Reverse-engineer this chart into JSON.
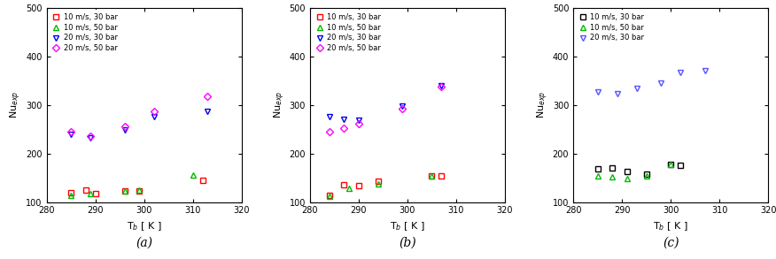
{
  "panels": [
    {
      "label": "(a)",
      "series": [
        {
          "key": "red_square",
          "x": [
            285,
            288,
            290,
            296,
            299,
            312
          ],
          "y": [
            120,
            125,
            118,
            122,
            122,
            145
          ],
          "color": "#ff0000",
          "marker": "s",
          "label": "10 m/s, 30 bar"
        },
        {
          "key": "green_tri_up",
          "x": [
            285,
            289,
            296,
            299,
            310
          ],
          "y": [
            114,
            117,
            123,
            125,
            155
          ],
          "color": "#00bb00",
          "marker": "^",
          "label": "10 m/s, 50 bar"
        },
        {
          "key": "blue_tri_down",
          "x": [
            285,
            289,
            296,
            302,
            313
          ],
          "y": [
            239,
            232,
            249,
            275,
            287
          ],
          "color": "#0000ee",
          "marker": "v",
          "label": "20 m/s, 30 bar"
        },
        {
          "key": "magenta_diamond",
          "x": [
            285,
            289,
            296,
            302,
            313
          ],
          "y": [
            244,
            236,
            255,
            286,
            318
          ],
          "color": "#ff00ff",
          "marker": "D",
          "label": "20 m/s, 50 bar"
        }
      ]
    },
    {
      "label": "(b)",
      "series": [
        {
          "key": "red_square",
          "x": [
            284,
            287,
            290,
            294,
            305,
            307
          ],
          "y": [
            113,
            135,
            133,
            143,
            153,
            153
          ],
          "color": "#ff0000",
          "marker": "s",
          "label": "10 m/s, 30 bar"
        },
        {
          "key": "green_tri_up",
          "x": [
            284,
            288,
            294,
            305
          ],
          "y": [
            112,
            128,
            138,
            153
          ],
          "color": "#00bb00",
          "marker": "^",
          "label": "10 m/s, 50 bar"
        },
        {
          "key": "blue_tri_down",
          "x": [
            284,
            287,
            290,
            299,
            307
          ],
          "y": [
            275,
            271,
            268,
            298,
            340
          ],
          "color": "#0000ee",
          "marker": "v",
          "label": "20 m/s, 30 bar"
        },
        {
          "key": "magenta_diamond",
          "x": [
            284,
            287,
            290,
            299,
            307
          ],
          "y": [
            245,
            252,
            262,
            293,
            337
          ],
          "color": "#ff00ff",
          "marker": "D",
          "label": "20 m/s, 50 bar"
        }
      ]
    },
    {
      "label": "(c)",
      "series": [
        {
          "key": "red_square",
          "x": [
            285,
            288,
            291,
            295,
            300,
            302
          ],
          "y": [
            168,
            170,
            163,
            158,
            178,
            176
          ],
          "color": "#000000",
          "marker": "s",
          "label": "10 m/s, 30 bar"
        },
        {
          "key": "green_tri_up",
          "x": [
            285,
            288,
            291,
            295,
            300
          ],
          "y": [
            153,
            152,
            148,
            153,
            178
          ],
          "color": "#00bb00",
          "marker": "^",
          "label": "10 m/s, 50 bar"
        },
        {
          "key": "blue_tri_down",
          "x": [
            285,
            289,
            293,
            298,
            302,
            307
          ],
          "y": [
            326,
            323,
            334,
            344,
            366,
            370
          ],
          "color": "#5555ff",
          "marker": "v",
          "label": "20 m/s, 30 bar"
        }
      ]
    }
  ],
  "xlim": [
    280,
    320
  ],
  "ylim": [
    100,
    500
  ],
  "xticks": [
    280,
    290,
    300,
    310,
    320
  ],
  "yticks": [
    100,
    200,
    300,
    400,
    500
  ],
  "xlabel": "T$_b$ [ K ]",
  "ylabel": "Nu$_{exp}$",
  "marker_size": 5,
  "marker_lw": 1.0,
  "tick_fontsize": 7,
  "label_fontsize": 8,
  "legend_fontsize": 6,
  "panel_label_fontsize": 10
}
